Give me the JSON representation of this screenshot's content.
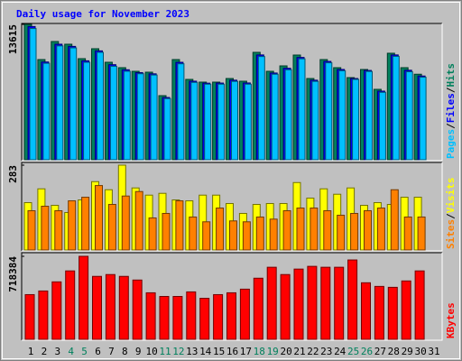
{
  "chart_data": [
    {
      "type": "bar",
      "title": "Daily usage for November 2023",
      "categories": [
        1,
        2,
        3,
        4,
        5,
        6,
        7,
        8,
        9,
        10,
        11,
        12,
        13,
        14,
        15,
        16,
        17,
        18,
        19,
        20,
        21,
        22,
        23,
        24,
        25,
        26,
        27,
        28,
        29,
        30,
        31
      ],
      "weekend_categories": [
        4,
        5,
        11,
        12,
        18,
        19,
        25,
        26
      ],
      "weekend_label_color": "#00805c",
      "label_color": "#000000",
      "legend_separator": "/",
      "series": [
        {
          "name": "Hits",
          "color": "#00805c",
          "values": [
            13615,
            10075,
            11891,
            11619,
            10166,
            11165,
            9803,
            9259,
            8895,
            8805,
            6445,
            10075,
            8079,
            7806,
            7806,
            8169,
            7897,
            10802,
            8895,
            9440,
            10529,
            8169,
            10075,
            9259,
            8260,
            9077,
            7080,
            10711,
            9259,
            8600,
            null
          ]
        },
        {
          "name": "Files",
          "color": "#0000ff",
          "values": [
            13400,
            9830,
            11620,
            11400,
            9950,
            10950,
            9560,
            9050,
            8760,
            8640,
            6260,
            9800,
            7900,
            7700,
            7710,
            8000,
            7720,
            10540,
            8720,
            9200,
            10290,
            8000,
            9890,
            9080,
            8170,
            8980,
            6900,
            10540,
            9000,
            8420,
            null
          ]
        },
        {
          "name": "Pages",
          "color": "#00c0ff",
          "values": [
            13200,
            9700,
            11450,
            11250,
            9800,
            10800,
            9400,
            8900,
            8650,
            8520,
            6150,
            9650,
            7780,
            7600,
            7600,
            7880,
            7600,
            10380,
            8600,
            9050,
            10150,
            7880,
            9750,
            8950,
            8080,
            8880,
            6780,
            10400,
            8850,
            8300,
            null
          ]
        }
      ],
      "ylim": [
        0,
        13615
      ],
      "yticks": [
        13615
      ]
    },
    {
      "type": "bar",
      "legend_separator": "/",
      "series": [
        {
          "name": "Visits",
          "color": "#ffff00",
          "values": [
            158,
            204,
            149,
            125,
            167,
            228,
            201,
            283,
            207,
            183,
            189,
            167,
            164,
            183,
            183,
            155,
            122,
            152,
            155,
            155,
            225,
            173,
            204,
            186,
            207,
            149,
            158,
            152,
            176,
            176,
            null
          ]
        },
        {
          "name": "Sites",
          "color": "#ff8000",
          "values": [
            131,
            146,
            131,
            164,
            176,
            215,
            152,
            180,
            195,
            107,
            122,
            164,
            110,
            94,
            140,
            97,
            94,
            110,
            103,
            131,
            140,
            140,
            131,
            116,
            122,
            131,
            140,
            201,
            110,
            110,
            null
          ]
        }
      ],
      "ylim": [
        0,
        283
      ],
      "yticks": [
        283
      ]
    },
    {
      "type": "bar",
      "series": [
        {
          "name": "KBytes",
          "color": "#ff0000",
          "values": [
            386806,
            418382,
            497322,
            592050,
            718384,
            544686,
            560474,
            544686,
            513110,
            402594,
            371018,
            371018,
            410488,
            355230,
            386806,
            402594,
            434170,
            528898,
            623626,
            560474,
            607838,
            631520,
            623626,
            623626,
            686778,
            489428,
            457852,
            449958,
            505216,
            592050,
            null
          ]
        }
      ],
      "ylim": [
        0,
        718384
      ],
      "yticks": [
        718384
      ]
    }
  ]
}
